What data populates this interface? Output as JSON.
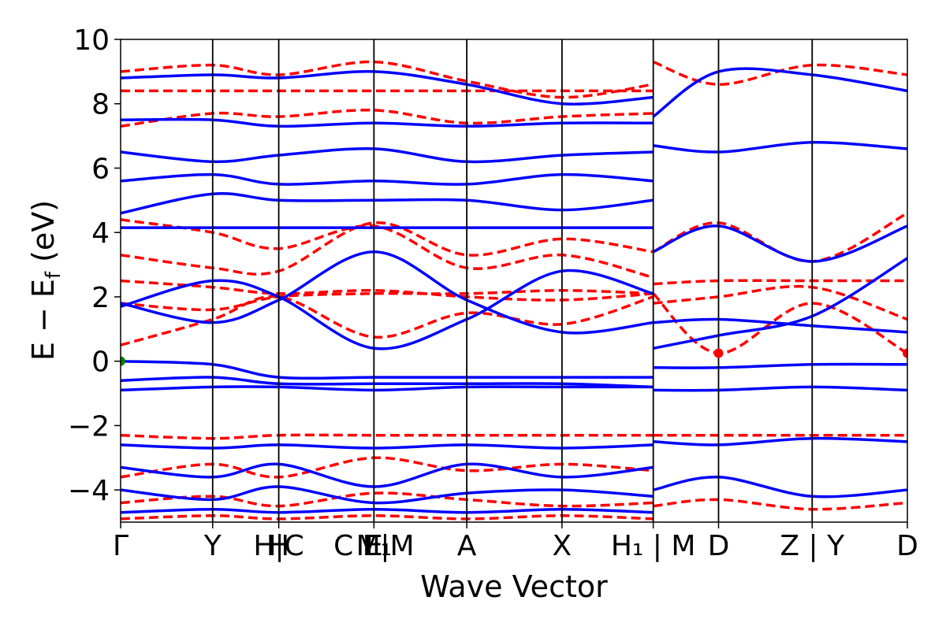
{
  "chart_data": {
    "type": "line",
    "title": "",
    "xlabel": "Wave Vector",
    "ylabel": "E − E_f (eV)",
    "ylabel_parts": {
      "main": "E − E",
      "sub": "f",
      "unit": " (eV)"
    },
    "ylim": [
      -5,
      10
    ],
    "yticks": [
      -4,
      -2,
      0,
      2,
      4,
      6,
      8,
      10
    ],
    "ytick_labels": [
      "−4",
      "−2",
      "0",
      "2",
      "4",
      "6",
      "8",
      "10"
    ],
    "xlim": [
      0,
      1
    ],
    "kpoint_labels": [
      {
        "x": 0.0,
        "label": "Γ"
      },
      {
        "x": 0.117,
        "label": "Y"
      },
      {
        "x": 0.201,
        "label": "H|C"
      },
      {
        "x": 0.201,
        "label": "H"
      },
      {
        "x": 0.322,
        "label": "C E|M"
      },
      {
        "x": 0.322,
        "label": "E"
      },
      {
        "x": 0.322,
        "label": "M₁"
      },
      {
        "x": 0.44,
        "label": "A"
      },
      {
        "x": 0.561,
        "label": "X"
      },
      {
        "x": 0.677,
        "label": "H₁ | M"
      },
      {
        "x": 0.76,
        "label": "D"
      },
      {
        "x": 0.879,
        "label": "Z | Y"
      },
      {
        "x": 1.0,
        "label": "D"
      }
    ],
    "segment_boundaries": [
      0.117,
      0.201,
      0.322,
      0.44,
      0.561,
      0.677,
      0.76,
      0.879
    ],
    "series_styles": {
      "spin_up": {
        "color": "#0000ff",
        "dash": "solid"
      },
      "spin_down": {
        "color": "#ff0000",
        "dash": "dashed"
      }
    },
    "markers": [
      {
        "x": 0.0,
        "y": 0.0,
        "color": "#008000"
      },
      {
        "x": 0.76,
        "y": 0.25,
        "color": "#ff0000"
      },
      {
        "x": 1.0,
        "y": 0.25,
        "color": "#ff0000"
      }
    ],
    "series": [
      {
        "style": "spin_down",
        "x": [
          0,
          0.117,
          0.201,
          0.322,
          0.44,
          0.561,
          0.677
        ],
        "y": [
          0.5,
          1.3,
          2.0,
          0.75,
          1.5,
          1.15,
          2.0
        ]
      },
      {
        "style": "spin_down",
        "x": [
          0,
          0.117,
          0.201,
          0.322,
          0.44,
          0.561,
          0.677
        ],
        "y": [
          1.8,
          1.6,
          2.0,
          2.1,
          2.1,
          2.2,
          2.1
        ]
      },
      {
        "style": "spin_down",
        "x": [
          0,
          0.117,
          0.201,
          0.322,
          0.44,
          0.561,
          0.677
        ],
        "y": [
          2.5,
          2.3,
          2.1,
          2.2,
          2.0,
          1.9,
          2.1
        ]
      },
      {
        "style": "spin_down",
        "x": [
          0,
          0.117,
          0.201,
          0.322,
          0.44,
          0.561,
          0.677
        ],
        "y": [
          3.3,
          2.9,
          2.8,
          4.3,
          3.3,
          3.8,
          3.4
        ]
      },
      {
        "style": "spin_down",
        "x": [
          0,
          0.117,
          0.201,
          0.322,
          0.44,
          0.561,
          0.677
        ],
        "y": [
          4.4,
          4.0,
          3.5,
          4.2,
          2.9,
          3.3,
          2.6
        ]
      },
      {
        "style": "spin_down",
        "x": [
          0,
          0.117,
          0.201,
          0.322,
          0.44,
          0.561,
          0.677
        ],
        "y": [
          7.3,
          7.7,
          7.6,
          7.8,
          7.4,
          7.6,
          7.7
        ]
      },
      {
        "style": "spin_down",
        "x": [
          0,
          0.117,
          0.201,
          0.322,
          0.44,
          0.561,
          0.677
        ],
        "y": [
          8.4,
          8.4,
          8.4,
          8.4,
          8.4,
          8.4,
          8.4
        ]
      },
      {
        "style": "spin_down",
        "x": [
          0,
          0.117,
          0.201,
          0.322,
          0.44,
          0.561,
          0.677
        ],
        "y": [
          9.0,
          9.2,
          8.9,
          9.3,
          8.7,
          8.2,
          8.6
        ]
      },
      {
        "style": "spin_down",
        "x": [
          0,
          0.117,
          0.201,
          0.322,
          0.44,
          0.561,
          0.677
        ],
        "y": [
          -2.3,
          -2.4,
          -2.3,
          -2.3,
          -2.3,
          -2.3,
          -2.3
        ]
      },
      {
        "style": "spin_down",
        "x": [
          0,
          0.117,
          0.201,
          0.322,
          0.44,
          0.561,
          0.677
        ],
        "y": [
          -3.6,
          -3.2,
          -3.6,
          -3.0,
          -3.4,
          -3.2,
          -3.4
        ]
      },
      {
        "style": "spin_down",
        "x": [
          0,
          0.117,
          0.201,
          0.322,
          0.44,
          0.561,
          0.677
        ],
        "y": [
          -4.4,
          -4.2,
          -4.5,
          -4.1,
          -4.3,
          -4.5,
          -4.4
        ]
      },
      {
        "style": "spin_down",
        "x": [
          0,
          0.117,
          0.201,
          0.322,
          0.44,
          0.561,
          0.677
        ],
        "y": [
          -4.9,
          -4.8,
          -4.9,
          -4.8,
          -4.9,
          -4.8,
          -4.9
        ]
      },
      {
        "style": "spin_down",
        "x": [
          0.677,
          0.76,
          0.879,
          1.0
        ],
        "y": [
          2.1,
          0.25,
          1.8,
          0.25
        ]
      },
      {
        "style": "spin_down",
        "x": [
          0.677,
          0.76,
          0.879,
          1.0
        ],
        "y": [
          1.8,
          2.0,
          2.3,
          1.3
        ]
      },
      {
        "style": "spin_down",
        "x": [
          0.677,
          0.76,
          0.879,
          1.0
        ],
        "y": [
          2.4,
          2.5,
          2.5,
          2.5
        ]
      },
      {
        "style": "spin_down",
        "x": [
          0.677,
          0.76,
          0.879,
          1.0
        ],
        "y": [
          3.4,
          4.3,
          3.1,
          4.6
        ]
      },
      {
        "style": "spin_down",
        "x": [
          0.677,
          0.76,
          0.879,
          1.0
        ],
        "y": [
          9.3,
          8.6,
          9.2,
          8.9
        ]
      },
      {
        "style": "spin_down",
        "x": [
          0.677,
          0.76,
          0.879,
          1.0
        ],
        "y": [
          -2.3,
          -2.3,
          -2.3,
          -2.3
        ]
      },
      {
        "style": "spin_down",
        "x": [
          0.677,
          0.76,
          0.879,
          1.0
        ],
        "y": [
          -4.5,
          -4.3,
          -4.6,
          -4.4
        ]
      },
      {
        "style": "spin_up",
        "x": [
          0,
          0.117,
          0.201,
          0.322,
          0.44,
          0.561,
          0.677
        ],
        "y": [
          0.0,
          -0.1,
          -0.5,
          -0.5,
          -0.5,
          -0.5,
          -0.5
        ]
      },
      {
        "style": "spin_up",
        "x": [
          0,
          0.117,
          0.201,
          0.322,
          0.44,
          0.561,
          0.677
        ],
        "y": [
          -0.6,
          -0.5,
          -0.7,
          -0.7,
          -0.7,
          -0.7,
          -0.8
        ]
      },
      {
        "style": "spin_up",
        "x": [
          0,
          0.117,
          0.201,
          0.322,
          0.44,
          0.561,
          0.677
        ],
        "y": [
          -0.9,
          -0.8,
          -0.8,
          -0.9,
          -0.8,
          -0.8,
          -0.8
        ]
      },
      {
        "style": "spin_up",
        "x": [
          0,
          0.117,
          0.201,
          0.322,
          0.44,
          0.561,
          0.677
        ],
        "y": [
          1.8,
          1.2,
          1.9,
          3.4,
          1.9,
          0.9,
          1.2
        ]
      },
      {
        "style": "spin_up",
        "x": [
          0,
          0.117,
          0.201,
          0.322,
          0.44,
          0.561,
          0.677
        ],
        "y": [
          1.7,
          2.5,
          2.0,
          0.4,
          1.3,
          2.8,
          2.1
        ]
      },
      {
        "style": "spin_up",
        "x": [
          0,
          0.117,
          0.201,
          0.322,
          0.44,
          0.561,
          0.677
        ],
        "y": [
          4.15,
          4.15,
          4.15,
          4.15,
          4.15,
          4.15,
          4.15
        ]
      },
      {
        "style": "spin_up",
        "x": [
          0,
          0.117,
          0.201,
          0.322,
          0.44,
          0.561,
          0.677
        ],
        "y": [
          4.6,
          5.2,
          5.0,
          5.0,
          5.0,
          4.7,
          5.0
        ]
      },
      {
        "style": "spin_up",
        "x": [
          0,
          0.117,
          0.201,
          0.322,
          0.44,
          0.561,
          0.677
        ],
        "y": [
          5.6,
          5.8,
          5.5,
          5.6,
          5.5,
          5.8,
          5.6
        ]
      },
      {
        "style": "spin_up",
        "x": [
          0,
          0.117,
          0.201,
          0.322,
          0.44,
          0.561,
          0.677
        ],
        "y": [
          6.5,
          6.2,
          6.4,
          6.6,
          6.2,
          6.4,
          6.5
        ]
      },
      {
        "style": "spin_up",
        "x": [
          0,
          0.117,
          0.201,
          0.322,
          0.44,
          0.561,
          0.677
        ],
        "y": [
          7.5,
          7.5,
          7.3,
          7.4,
          7.3,
          7.4,
          7.4
        ]
      },
      {
        "style": "spin_up",
        "x": [
          0,
          0.117,
          0.201,
          0.322,
          0.44,
          0.561,
          0.677
        ],
        "y": [
          8.8,
          8.9,
          8.8,
          9.0,
          8.6,
          8.0,
          8.2
        ]
      },
      {
        "style": "spin_up",
        "x": [
          0,
          0.117,
          0.201,
          0.322,
          0.44,
          0.561,
          0.677
        ],
        "y": [
          -2.6,
          -2.7,
          -2.6,
          -2.7,
          -2.6,
          -2.7,
          -2.6
        ]
      },
      {
        "style": "spin_up",
        "x": [
          0,
          0.117,
          0.201,
          0.322,
          0.44,
          0.561,
          0.677
        ],
        "y": [
          -3.3,
          -3.6,
          -3.2,
          -3.9,
          -3.2,
          -3.6,
          -3.3
        ]
      },
      {
        "style": "spin_up",
        "x": [
          0,
          0.117,
          0.201,
          0.322,
          0.44,
          0.561,
          0.677
        ],
        "y": [
          -4.0,
          -4.3,
          -3.9,
          -4.4,
          -4.1,
          -4.0,
          -4.2
        ]
      },
      {
        "style": "spin_up",
        "x": [
          0,
          0.117,
          0.201,
          0.322,
          0.44,
          0.561,
          0.677
        ],
        "y": [
          -4.7,
          -4.6,
          -4.7,
          -4.6,
          -4.7,
          -4.6,
          -4.7
        ]
      },
      {
        "style": "spin_up",
        "x": [
          0.677,
          0.76,
          0.879,
          1.0
        ],
        "y": [
          0.4,
          0.8,
          1.4,
          3.2
        ]
      },
      {
        "style": "spin_up",
        "x": [
          0.677,
          0.76,
          0.879,
          1.0
        ],
        "y": [
          3.4,
          4.2,
          3.1,
          4.2
        ]
      },
      {
        "style": "spin_up",
        "x": [
          0.677,
          0.76,
          0.879,
          1.0
        ],
        "y": [
          1.2,
          1.3,
          1.1,
          0.9
        ]
      },
      {
        "style": "spin_up",
        "x": [
          0.677,
          0.76,
          0.879,
          1.0
        ],
        "y": [
          -0.2,
          -0.2,
          -0.1,
          -0.1
        ]
      },
      {
        "style": "spin_up",
        "x": [
          0.677,
          0.76,
          0.879,
          1.0
        ],
        "y": [
          -0.9,
          -0.9,
          -0.8,
          -0.9
        ]
      },
      {
        "style": "spin_up",
        "x": [
          0.677,
          0.76,
          0.879,
          1.0
        ],
        "y": [
          7.6,
          9.0,
          8.9,
          8.4
        ]
      },
      {
        "style": "spin_up",
        "x": [
          0.677,
          0.76,
          0.879,
          1.0
        ],
        "y": [
          6.7,
          6.5,
          6.8,
          6.6
        ]
      },
      {
        "style": "spin_up",
        "x": [
          0.677,
          0.76,
          0.879,
          1.0
        ],
        "y": [
          -2.5,
          -2.6,
          -2.4,
          -2.5
        ]
      },
      {
        "style": "spin_up",
        "x": [
          0.677,
          0.76,
          0.879,
          1.0
        ],
        "y": [
          -4.0,
          -3.6,
          -4.2,
          -4.0
        ]
      }
    ]
  }
}
